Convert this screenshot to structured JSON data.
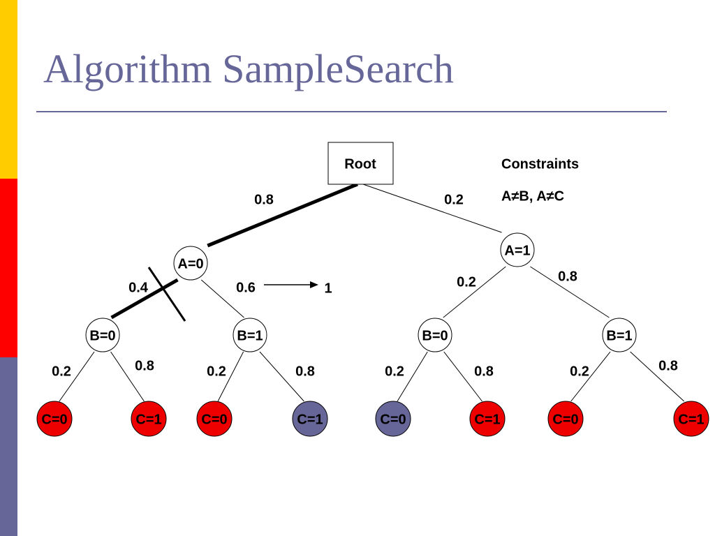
{
  "title": "Algorithm SampleSearch",
  "constraints": {
    "heading": "Constraints",
    "text": "A≠B, A≠C"
  },
  "nodes": [
    {
      "label": "Root"
    },
    {
      "label": "A=0"
    },
    {
      "label": "A=1"
    },
    {
      "label": "B=0"
    },
    {
      "label": "B=1"
    },
    {
      "label": "B=0"
    },
    {
      "label": "B=1"
    },
    {
      "label": "C=0"
    },
    {
      "label": "C=1"
    },
    {
      "label": "C=0"
    },
    {
      "label": "C=1"
    },
    {
      "label": "C=0"
    },
    {
      "label": "C=1"
    },
    {
      "label": "C=0"
    },
    {
      "label": "C=1"
    }
  ],
  "edges": [
    {
      "label": "0.8"
    },
    {
      "label": "0.2"
    },
    {
      "label": "0.4"
    },
    {
      "label": "0.6"
    },
    {
      "label": "0.2"
    },
    {
      "label": "0.8"
    },
    {
      "label": "0.2"
    },
    {
      "label": "0.8"
    },
    {
      "label": "0.2"
    },
    {
      "label": "0.8"
    },
    {
      "label": "0.2"
    },
    {
      "label": "0.8"
    },
    {
      "label": "0.2"
    },
    {
      "label": "0.8"
    }
  ],
  "arrow_label": "1"
}
